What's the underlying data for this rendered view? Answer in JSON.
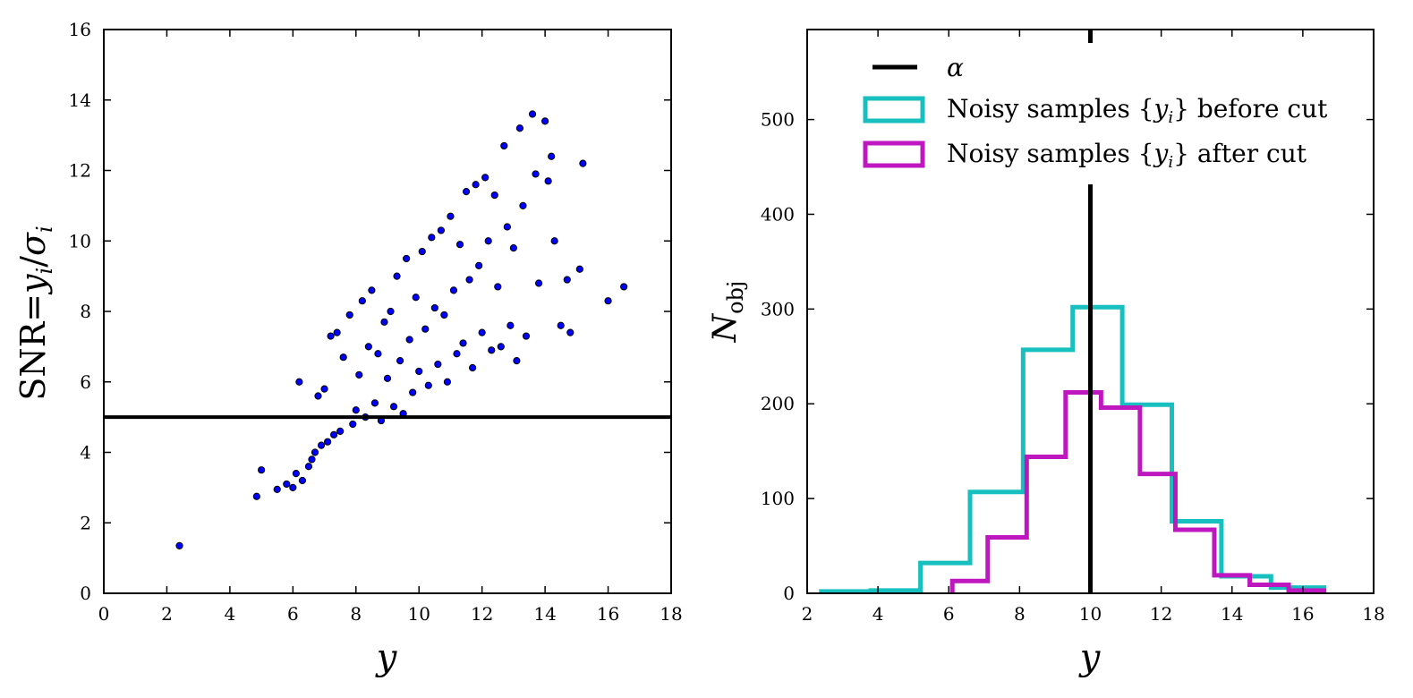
{
  "chart_data": [
    {
      "type": "scatter",
      "xlabel": "y",
      "ylabel": "SNR= y_i/σ_i",
      "ylabel_parts": {
        "text": "SNR=",
        "math": "y",
        "sub": "i",
        "sep": "/",
        "sigma": "σ",
        "sub2": "i"
      },
      "xlim": [
        0,
        18
      ],
      "ylim": [
        0,
        16
      ],
      "xticks": [
        "0",
        "2",
        "4",
        "6",
        "8",
        "10",
        "12",
        "14",
        "16",
        "18"
      ],
      "yticks": [
        "0",
        "2",
        "4",
        "6",
        "8",
        "10",
        "12",
        "14",
        "16"
      ],
      "hline": 5,
      "marker_color": "#0000ff",
      "line_color": "#000000",
      "points": [
        [
          2.4,
          1.35
        ],
        [
          4.85,
          2.75
        ],
        [
          5.0,
          3.5
        ],
        [
          5.5,
          2.95
        ],
        [
          5.8,
          3.1
        ],
        [
          6.0,
          3.0
        ],
        [
          6.1,
          3.4
        ],
        [
          6.3,
          3.2
        ],
        [
          6.2,
          6.0
        ],
        [
          6.5,
          3.6
        ],
        [
          6.6,
          3.8
        ],
        [
          6.7,
          4.0
        ],
        [
          6.8,
          5.6
        ],
        [
          6.9,
          4.2
        ],
        [
          7.0,
          5.8
        ],
        [
          7.1,
          4.3
        ],
        [
          7.2,
          7.3
        ],
        [
          7.4,
          7.4
        ],
        [
          7.3,
          4.5
        ],
        [
          7.5,
          4.6
        ],
        [
          7.6,
          6.7
        ],
        [
          7.8,
          7.9
        ],
        [
          7.9,
          4.8
        ],
        [
          8.0,
          5.2
        ],
        [
          8.1,
          6.2
        ],
        [
          8.2,
          8.3
        ],
        [
          8.3,
          5.0
        ],
        [
          8.4,
          7.0
        ],
        [
          8.5,
          8.6
        ],
        [
          8.6,
          5.4
        ],
        [
          8.7,
          6.8
        ],
        [
          8.8,
          4.9
        ],
        [
          8.9,
          7.7
        ],
        [
          9.0,
          6.1
        ],
        [
          9.1,
          8.0
        ],
        [
          9.2,
          5.3
        ],
        [
          9.3,
          9.0
        ],
        [
          9.4,
          6.6
        ],
        [
          9.5,
          5.1
        ],
        [
          9.6,
          9.5
        ],
        [
          9.7,
          7.2
        ],
        [
          9.8,
          5.7
        ],
        [
          9.9,
          8.4
        ],
        [
          10.0,
          6.3
        ],
        [
          10.1,
          9.7
        ],
        [
          10.2,
          7.5
        ],
        [
          10.3,
          5.9
        ],
        [
          10.4,
          10.1
        ],
        [
          10.5,
          8.1
        ],
        [
          10.6,
          6.5
        ],
        [
          10.7,
          10.3
        ],
        [
          10.8,
          7.9
        ],
        [
          10.9,
          6.0
        ],
        [
          11.0,
          10.7
        ],
        [
          11.1,
          8.6
        ],
        [
          11.2,
          6.8
        ],
        [
          11.3,
          9.9
        ],
        [
          11.4,
          7.1
        ],
        [
          11.5,
          11.4
        ],
        [
          11.6,
          8.9
        ],
        [
          11.7,
          6.4
        ],
        [
          11.8,
          11.6
        ],
        [
          11.9,
          9.3
        ],
        [
          12.0,
          7.4
        ],
        [
          12.1,
          11.8
        ],
        [
          12.2,
          10.0
        ],
        [
          12.3,
          6.9
        ],
        [
          12.4,
          11.3
        ],
        [
          12.5,
          8.7
        ],
        [
          12.6,
          7.0
        ],
        [
          12.7,
          12.7
        ],
        [
          12.8,
          10.4
        ],
        [
          12.9,
          7.6
        ],
        [
          13.0,
          9.8
        ],
        [
          13.1,
          6.6
        ],
        [
          13.2,
          13.2
        ],
        [
          13.3,
          11.0
        ],
        [
          13.4,
          7.3
        ],
        [
          13.6,
          13.6
        ],
        [
          13.7,
          11.9
        ],
        [
          13.8,
          8.8
        ],
        [
          14.0,
          13.4
        ],
        [
          14.1,
          11.7
        ],
        [
          14.2,
          12.4
        ],
        [
          14.3,
          10.0
        ],
        [
          14.5,
          7.6
        ],
        [
          14.7,
          8.9
        ],
        [
          14.8,
          7.4
        ],
        [
          15.1,
          9.2
        ],
        [
          15.2,
          12.2
        ],
        [
          16.0,
          8.3
        ],
        [
          16.5,
          8.7
        ]
      ]
    },
    {
      "type": "histogram",
      "xlabel": "y",
      "ylabel": "N_obj",
      "ylabel_parts": {
        "base": "N",
        "sub": "obj"
      },
      "xlim": [
        2,
        18
      ],
      "ylim": [
        0,
        595
      ],
      "xticks": [
        "2",
        "4",
        "6",
        "8",
        "10",
        "12",
        "14",
        "16",
        "18"
      ],
      "yticks": [
        "0",
        "100",
        "200",
        "300",
        "400",
        "500"
      ],
      "ytick_values": [
        0,
        100,
        200,
        300,
        400,
        500
      ],
      "xtick_values": [
        2,
        4,
        6,
        8,
        10,
        12,
        14,
        16,
        18
      ],
      "vline": 10,
      "legend_position": "upper-left",
      "series": [
        {
          "name": "Noisy samples {y_i} before cut",
          "name_parts": {
            "pre": "Noisy samples {",
            "math": "y",
            "sub": "i",
            "post": "} before cut"
          },
          "color": "#17bfbf",
          "edges": [
            2.4,
            3.8,
            5.2,
            6.6,
            8.1,
            9.5,
            10.9,
            12.3,
            13.7,
            15.1,
            16.6
          ],
          "counts": [
            2,
            3,
            32,
            107,
            257,
            302,
            199,
            76,
            18,
            6
          ]
        },
        {
          "name": "Noisy samples {y_i} after cut",
          "name_parts": {
            "pre": "Noisy samples {",
            "math": "y",
            "sub": "i",
            "post": "} after cut"
          },
          "color": "#bf17bf",
          "edges": [
            6.1,
            7.1,
            8.2,
            9.3,
            10.3,
            11.4,
            12.4,
            13.5,
            14.5,
            15.6,
            16.6
          ],
          "counts": [
            13,
            59,
            144,
            212,
            196,
            126,
            67,
            19,
            9,
            3
          ]
        }
      ],
      "legend": [
        {
          "label": "α",
          "kind": "line",
          "color": "#000000"
        },
        {
          "label": "Noisy samples {y_i} before cut",
          "kind": "box",
          "color": "#17bfbf"
        },
        {
          "label": "Noisy samples {y_i} after cut",
          "kind": "box",
          "color": "#bf17bf"
        }
      ]
    }
  ]
}
